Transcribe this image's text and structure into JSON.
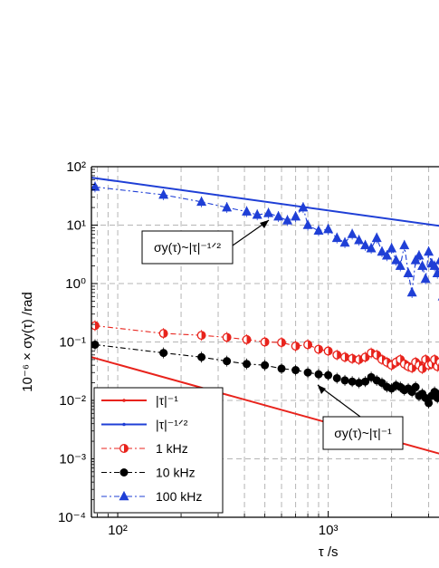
{
  "chart_data": {
    "type": "line",
    "x_scale": "log",
    "y_scale": "log",
    "xlabel": "τ /s",
    "ylabel": "10⁻⁶ × σy(τ) /rad",
    "xlim": [
      75,
      3600
    ],
    "ylim": [
      0.0001,
      100
    ],
    "x_tick_labels": [
      "10²",
      "10³"
    ],
    "y_tick_labels": [
      "10⁻⁴",
      "10⁻³",
      "10⁻²",
      "10⁻¹",
      "10⁰",
      "10¹",
      "10²"
    ],
    "grid": true,
    "legend_position": "bottom-left",
    "series": [
      {
        "name": "|τ|⁻¹",
        "style": "solid line",
        "color": "#e8231c",
        "x": [
          75,
          3600
        ],
        "y": [
          0.055,
          0.00115
        ]
      },
      {
        "name": "|τ|⁻¹ᐟ²",
        "style": "solid line",
        "color": "#1f3fd6",
        "x": [
          75,
          3600
        ],
        "y": [
          65,
          9.4
        ]
      },
      {
        "name": "1  kHz",
        "style": "dash-dot with open-half circles",
        "color": "#e8231c",
        "x": [
          78,
          165,
          250,
          330,
          410,
          500,
          600,
          700,
          800,
          900,
          1000,
          1100,
          1200,
          1300,
          1400,
          1500,
          1600,
          1700,
          1800,
          1900,
          2000,
          2100,
          2200,
          2300,
          2400,
          2500,
          2600,
          2700,
          2800,
          2900,
          3000,
          3100,
          3200,
          3300,
          3400,
          3500
        ],
        "y": [
          0.19,
          0.14,
          0.13,
          0.12,
          0.11,
          0.1,
          0.098,
          0.085,
          0.09,
          0.075,
          0.07,
          0.06,
          0.055,
          0.052,
          0.05,
          0.055,
          0.065,
          0.06,
          0.05,
          0.045,
          0.04,
          0.045,
          0.05,
          0.042,
          0.038,
          0.036,
          0.045,
          0.04,
          0.035,
          0.05,
          0.04,
          0.042,
          0.05,
          0.038,
          0.045,
          0.04
        ]
      },
      {
        "name": "10  kHz",
        "style": "dash-dot with filled circles",
        "color": "#000000",
        "x": [
          78,
          165,
          250,
          330,
          410,
          500,
          600,
          700,
          800,
          900,
          1000,
          1100,
          1200,
          1300,
          1400,
          1500,
          1600,
          1700,
          1800,
          1900,
          2000,
          2100,
          2200,
          2300,
          2400,
          2500,
          2600,
          2700,
          2800,
          2900,
          3000,
          3100,
          3200,
          3300,
          3400,
          3500
        ],
        "y": [
          0.09,
          0.065,
          0.055,
          0.047,
          0.042,
          0.04,
          0.035,
          0.033,
          0.03,
          0.028,
          0.027,
          0.024,
          0.022,
          0.021,
          0.02,
          0.021,
          0.025,
          0.022,
          0.02,
          0.017,
          0.016,
          0.018,
          0.017,
          0.015,
          0.016,
          0.014,
          0.017,
          0.012,
          0.013,
          0.011,
          0.009,
          0.012,
          0.014,
          0.011,
          0.013,
          0.012
        ]
      },
      {
        "name": "100 kHz",
        "style": "dash-dot with filled triangles",
        "color": "#1f3fd6",
        "x": [
          78,
          165,
          250,
          330,
          410,
          460,
          520,
          580,
          640,
          700,
          760,
          800,
          900,
          1000,
          1100,
          1200,
          1300,
          1400,
          1500,
          1600,
          1700,
          1800,
          1900,
          2000,
          2100,
          2200,
          2300,
          2400,
          2500,
          2600,
          2700,
          2800,
          2900,
          3000,
          3100,
          3200,
          3300,
          3400,
          3500
        ],
        "y": [
          45,
          33,
          25,
          20,
          17,
          15,
          16,
          14,
          12,
          14,
          20,
          10,
          8,
          8.5,
          6,
          5,
          7,
          5.5,
          4.5,
          4,
          6,
          3.5,
          3,
          4,
          2.5,
          2,
          4.5,
          1.5,
          0.7,
          2.5,
          3,
          2,
          1.2,
          3.5,
          2.2,
          2,
          1.5,
          2.5,
          0.6
        ]
      }
    ],
    "annotations": [
      {
        "text": "σy(τ)~|τ|⁻¹ᐟ²",
        "points_to": "|τ|⁻¹ᐟ² line"
      },
      {
        "text": "σy(τ)~|τ|⁻¹",
        "points_to": "|τ|⁻¹ line"
      }
    ]
  }
}
